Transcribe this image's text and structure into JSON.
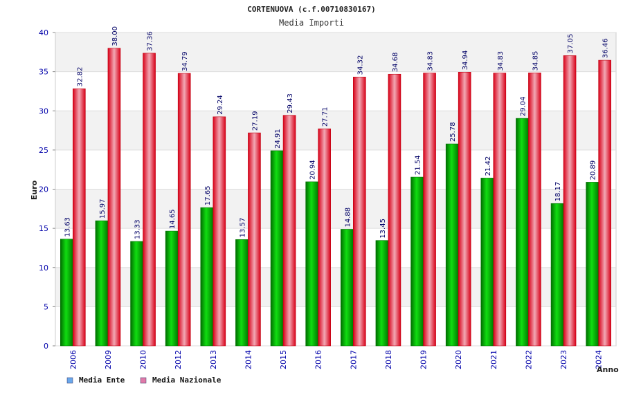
{
  "chart_data": {
    "type": "bar",
    "title": "CORTENUOVA (c.f.00710830167)",
    "subtitle": "Media Importi",
    "ylabel": "Euro",
    "xlabel": "Anno",
    "ylim": [
      0,
      40
    ],
    "yticks": [
      "0",
      "5",
      "10",
      "15",
      "20",
      "25",
      "30",
      "35",
      "40"
    ],
    "grid": true,
    "legend_position": "bottom-left",
    "categories": [
      "2006",
      "2009",
      "2010",
      "2012",
      "2013",
      "2014",
      "2015",
      "2016",
      "2017",
      "2018",
      "2019",
      "2020",
      "2021",
      "2022",
      "2023",
      "2024"
    ],
    "series": [
      {
        "name": "Media Ente",
        "color": "#00a000",
        "legend_color": "#6aa8ec",
        "values": [
          13.63,
          15.97,
          13.33,
          14.65,
          17.65,
          13.57,
          24.91,
          20.94,
          14.88,
          13.45,
          21.54,
          25.78,
          21.42,
          29.04,
          18.17,
          20.89
        ],
        "labels": [
          "13.63",
          "15.97",
          "13.33",
          "14.65",
          "17.65",
          "13.57",
          "24.91",
          "20.94",
          "14.88",
          "13.45",
          "21.54",
          "25.78",
          "21.42",
          "29.04",
          "18.17",
          "20.89"
        ]
      },
      {
        "name": "Media Nazionale",
        "color": "#e8102a",
        "legend_color": "#e07aa8",
        "values": [
          32.82,
          38.0,
          37.36,
          34.79,
          29.24,
          27.19,
          29.43,
          27.71,
          34.32,
          34.68,
          34.83,
          34.94,
          34.83,
          34.85,
          37.05,
          36.46
        ],
        "labels": [
          "32.82",
          "38.00",
          "37.36",
          "34.79",
          "29.24",
          "27.19",
          "29.43",
          "27.71",
          "34.32",
          "34.68",
          "34.83",
          "34.94",
          "34.83",
          "34.85",
          "37.05",
          "36.46"
        ]
      }
    ]
  }
}
